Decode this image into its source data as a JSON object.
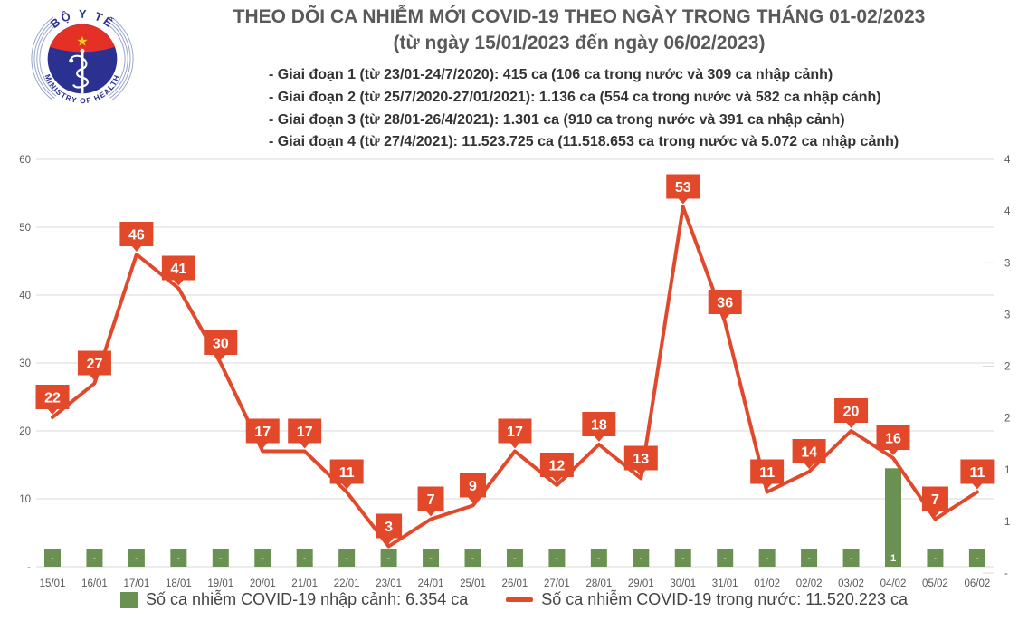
{
  "header": {
    "logo": {
      "top_text": "BỘ Y TẾ",
      "bottom_text": "MINISTRY OF HEALTH"
    },
    "title": "THEO DÕI CA NHIỄM MỚI COVID-19 THEO NGÀY TRONG THÁNG 01-02/2023",
    "subtitle": "(từ ngày 15/01/2023 đến ngày 06/02/2023)",
    "phases": [
      "- Giai đoạn 1 (từ 23/01-24/7/2020): 415 ca (106 ca trong nước và 309 ca nhập cảnh)",
      "- Giai đoạn 2 (từ 25/7/2020-27/01/2021): 1.136 ca (554 ca trong nước và 582 ca nhập cảnh)",
      "- Giai đoạn 3 (từ 28/01-26/4/2021): 1.301 ca (910 ca trong nước và 391 ca nhập cảnh)",
      "- Giai đoạn 4 (từ 27/4/2021): 11.523.725 ca (11.518.653 ca trong nước và 5.072 ca nhập cảnh)"
    ]
  },
  "chart_data": {
    "type": "line+bar",
    "categories": [
      "15/01",
      "16/01",
      "17/01",
      "18/01",
      "19/01",
      "20/01",
      "21/01",
      "22/01",
      "23/01",
      "24/01",
      "25/01",
      "26/01",
      "27/01",
      "28/01",
      "29/01",
      "30/01",
      "31/01",
      "01/02",
      "02/02",
      "03/02",
      "04/02",
      "05/02",
      "06/02"
    ],
    "series": [
      {
        "name": "Số ca nhiễm COVID-19 trong nước",
        "type": "line",
        "color": "#e0492b",
        "values": [
          22,
          27,
          46,
          41,
          30,
          17,
          17,
          11,
          3,
          7,
          9,
          17,
          12,
          18,
          13,
          53,
          36,
          11,
          14,
          20,
          16,
          7,
          11
        ]
      },
      {
        "name": "Số ca nhiễm COVID-19 nhập cảnh",
        "type": "bar",
        "color": "#6b9152",
        "values": [
          0,
          0,
          0,
          0,
          0,
          0,
          0,
          0,
          0,
          0,
          0,
          0,
          0,
          0,
          0,
          0,
          0,
          0,
          0,
          0,
          1,
          0,
          0
        ],
        "labels": [
          "-",
          "-",
          "-",
          "-",
          "-",
          "-",
          "-",
          "-",
          "-",
          "-",
          "-",
          "-",
          "-",
          "-",
          "-",
          "-",
          "-",
          "-",
          "-",
          "-",
          "1",
          "-",
          "-"
        ]
      }
    ],
    "left_axis": {
      "ylim": [
        0,
        60
      ],
      "step": 10,
      "tick_labels": [
        "60",
        "50",
        "40",
        "30",
        "20",
        "10",
        "-"
      ]
    },
    "right_axis_labels": [
      "4",
      "4",
      "3",
      "3",
      "2",
      "2",
      "1",
      "1",
      "-"
    ],
    "grid": "horizontal",
    "legend_position": "bottom"
  },
  "legend": {
    "items": [
      {
        "swatch": "green-square",
        "label": "Số ca nhiễm COVID-19 nhập cảnh: 6.354 ca"
      },
      {
        "swatch": "red-line",
        "label": "Số ca nhiễm COVID-19 trong nước: 11.520.223 ca"
      }
    ]
  },
  "colors": {
    "line_red": "#e0492b",
    "label_box_red": "#e2492b",
    "bar_green": "#6b9152",
    "grid_gray": "#d9d9d9",
    "axis_text": "#595959",
    "title_text": "#595959",
    "logo_blue": "#2b3190",
    "logo_red": "#e53125",
    "star_yellow": "#fcd116"
  }
}
